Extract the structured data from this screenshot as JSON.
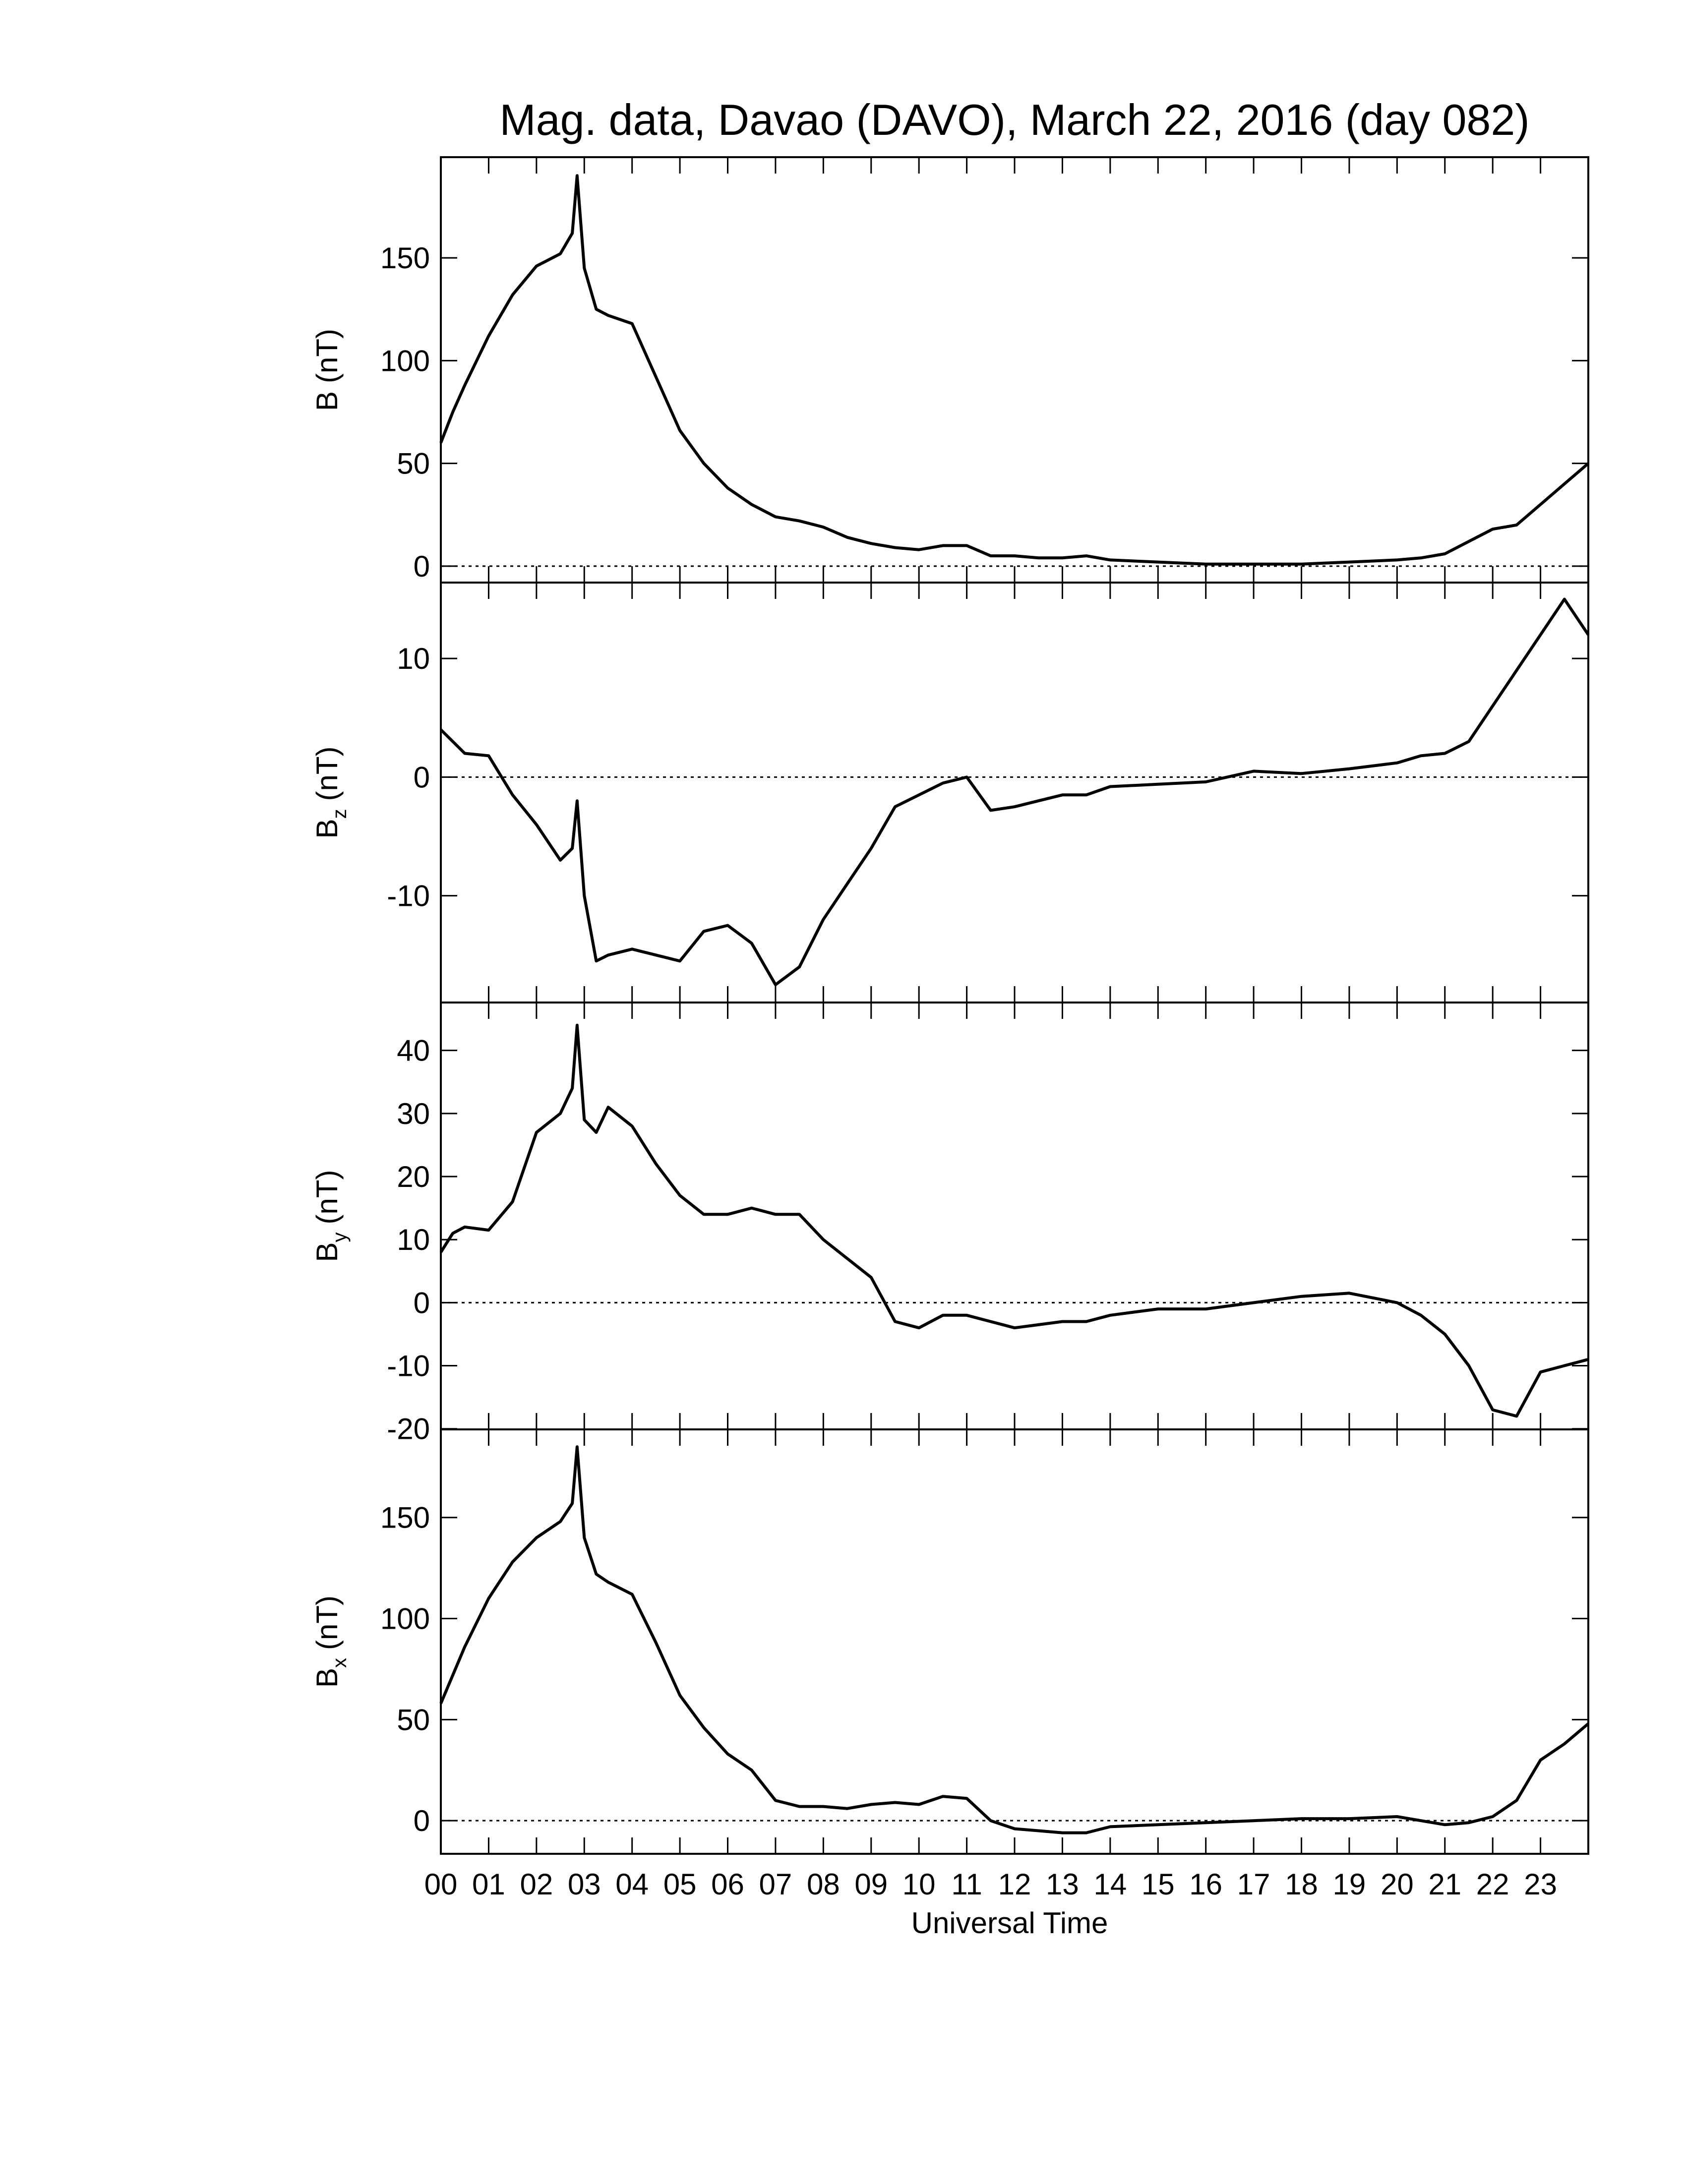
{
  "chart_data": [
    {
      "type": "line",
      "title": "Mag. data, Davao (DAVO), March 22, 2016 (day 082)",
      "ylabel": "B",
      "ylabel_unit": "(nT)",
      "color": "#000000",
      "zero_line": 0,
      "xlim": [
        0,
        24
      ],
      "ylim": [
        -8,
        199
      ],
      "yticks": [
        0,
        50,
        100,
        150
      ],
      "x": [
        0,
        0.25,
        0.5,
        1,
        1.5,
        2,
        2.5,
        2.75,
        2.85,
        3,
        3.25,
        3.5,
        4,
        4.5,
        5,
        5.5,
        6,
        6.5,
        7,
        7.5,
        8,
        8.5,
        9,
        9.5,
        10,
        10.5,
        11,
        11.5,
        12,
        12.5,
        13,
        13.5,
        14,
        15,
        16,
        17,
        18,
        19,
        20,
        20.5,
        21,
        21.5,
        22,
        22.5,
        23,
        23.5,
        24
      ],
      "values": [
        60,
        75,
        88,
        112,
        132,
        146,
        152,
        162,
        190,
        145,
        125,
        122,
        118,
        92,
        66,
        50,
        38,
        30,
        24,
        22,
        19,
        14,
        11,
        9,
        8,
        10,
        10,
        5,
        5,
        4,
        4,
        5,
        3,
        2,
        1,
        1,
        1,
        2,
        3,
        4,
        6,
        12,
        18,
        20,
        30,
        40,
        50
      ]
    },
    {
      "type": "line",
      "ylabel": "B",
      "ylabel_sub": "z",
      "ylabel_unit": "(nT)",
      "color": "#000000",
      "zero_line": 0,
      "xlim": [
        0,
        24
      ],
      "ylim": [
        -19,
        16.4
      ],
      "yticks": [
        -10,
        0,
        10
      ],
      "x": [
        0,
        0.25,
        0.5,
        1,
        1.5,
        2,
        2.5,
        2.75,
        2.85,
        3,
        3.25,
        3.5,
        4,
        4.5,
        5,
        5.5,
        6,
        6.5,
        7,
        7.5,
        8,
        8.5,
        9,
        9.5,
        10,
        10.5,
        11,
        11.5,
        12,
        12.5,
        13,
        13.5,
        14,
        15,
        16,
        17,
        18,
        19,
        20,
        20.5,
        21,
        21.5,
        22,
        22.5,
        23,
        23.5,
        24
      ],
      "values": [
        4,
        3,
        2,
        1.8,
        -1.5,
        -4,
        -7,
        -6,
        -2,
        -10,
        -15.5,
        -15,
        -14.5,
        -15,
        -15.5,
        -13,
        -12.5,
        -14,
        -17.5,
        -16,
        -12,
        -9,
        -6,
        -2.5,
        -1.5,
        -0.5,
        0,
        -2.8,
        -2.5,
        -2,
        -1.5,
        -1.5,
        -0.8,
        -0.6,
        -0.4,
        0.5,
        0.3,
        0.7,
        1.2,
        1.8,
        2,
        3,
        6,
        9,
        12,
        15,
        12
      ]
    },
    {
      "type": "line",
      "ylabel": "B",
      "ylabel_sub": "y",
      "ylabel_unit": "(nT)",
      "color": "#000000",
      "zero_line": 0,
      "xlim": [
        0,
        24
      ],
      "ylim": [
        -20.1,
        47.6
      ],
      "yticks": [
        -20,
        -10,
        0,
        10,
        20,
        30,
        40
      ],
      "x": [
        0,
        0.25,
        0.5,
        1,
        1.5,
        2,
        2.5,
        2.75,
        2.85,
        3,
        3.25,
        3.5,
        4,
        4.5,
        5,
        5.5,
        6,
        6.5,
        7,
        7.5,
        8,
        8.5,
        9,
        9.5,
        10,
        10.5,
        11,
        11.5,
        12,
        12.5,
        13,
        13.5,
        14,
        15,
        16,
        17,
        18,
        19,
        20,
        20.5,
        21,
        21.5,
        22,
        22.5,
        23,
        23.5,
        24
      ],
      "values": [
        8,
        11,
        12,
        11.5,
        16,
        27,
        30,
        34,
        44,
        29,
        27,
        31,
        28,
        22,
        17,
        14,
        14,
        15,
        14,
        14,
        10,
        7,
        4,
        -3,
        -4,
        -2,
        -2,
        -3,
        -4,
        -3.5,
        -3,
        -3,
        -2,
        -1,
        -1,
        0,
        1,
        1.5,
        0,
        -2,
        -5,
        -10,
        -17,
        -18,
        -11,
        -10,
        -9
      ]
    },
    {
      "type": "line",
      "ylabel": "B",
      "ylabel_sub": "x",
      "ylabel_unit": "(nT)",
      "xlabel": "Universal Time",
      "color": "#000000",
      "zero_line": 0,
      "xlim": [
        0,
        24
      ],
      "ylim": [
        -16.4,
        193.6
      ],
      "yticks": [
        0,
        50,
        100,
        150
      ],
      "xticks": [
        {
          "value": 0,
          "label": "00"
        },
        {
          "value": 1,
          "label": "01"
        },
        {
          "value": 2,
          "label": "02"
        },
        {
          "value": 3,
          "label": "03"
        },
        {
          "value": 4,
          "label": "04"
        },
        {
          "value": 5,
          "label": "05"
        },
        {
          "value": 6,
          "label": "06"
        },
        {
          "value": 7,
          "label": "07"
        },
        {
          "value": 8,
          "label": "08"
        },
        {
          "value": 9,
          "label": "09"
        },
        {
          "value": 10,
          "label": "10"
        },
        {
          "value": 11,
          "label": "11"
        },
        {
          "value": 12,
          "label": "12"
        },
        {
          "value": 13,
          "label": "13"
        },
        {
          "value": 14,
          "label": "14"
        },
        {
          "value": 15,
          "label": "15"
        },
        {
          "value": 16,
          "label": "16"
        },
        {
          "value": 17,
          "label": "17"
        },
        {
          "value": 18,
          "label": "18"
        },
        {
          "value": 19,
          "label": "19"
        },
        {
          "value": 20,
          "label": "20"
        },
        {
          "value": 21,
          "label": "21"
        },
        {
          "value": 22,
          "label": "22"
        },
        {
          "value": 23,
          "label": "23"
        }
      ],
      "x": [
        0,
        0.25,
        0.5,
        1,
        1.5,
        2,
        2.5,
        2.75,
        2.85,
        3,
        3.25,
        3.5,
        4,
        4.5,
        5,
        5.5,
        6,
        6.5,
        7,
        7.5,
        8,
        8.5,
        9,
        9.5,
        10,
        10.5,
        11,
        11.5,
        12,
        12.5,
        13,
        13.5,
        14,
        15,
        16,
        17,
        18,
        19,
        20,
        20.5,
        21,
        21.5,
        22,
        22.5,
        23,
        23.5,
        24
      ],
      "values": [
        58,
        72,
        86,
        110,
        128,
        140,
        148,
        157,
        185,
        140,
        122,
        118,
        112,
        88,
        62,
        46,
        33,
        25,
        10,
        7,
        7,
        6,
        8,
        9,
        8,
        12,
        11,
        0,
        -4,
        -5,
        -6,
        -6,
        -3,
        -2,
        -1,
        0,
        1,
        1,
        2,
        0,
        -2,
        -1,
        2,
        10,
        30,
        38,
        48
      ]
    }
  ]
}
